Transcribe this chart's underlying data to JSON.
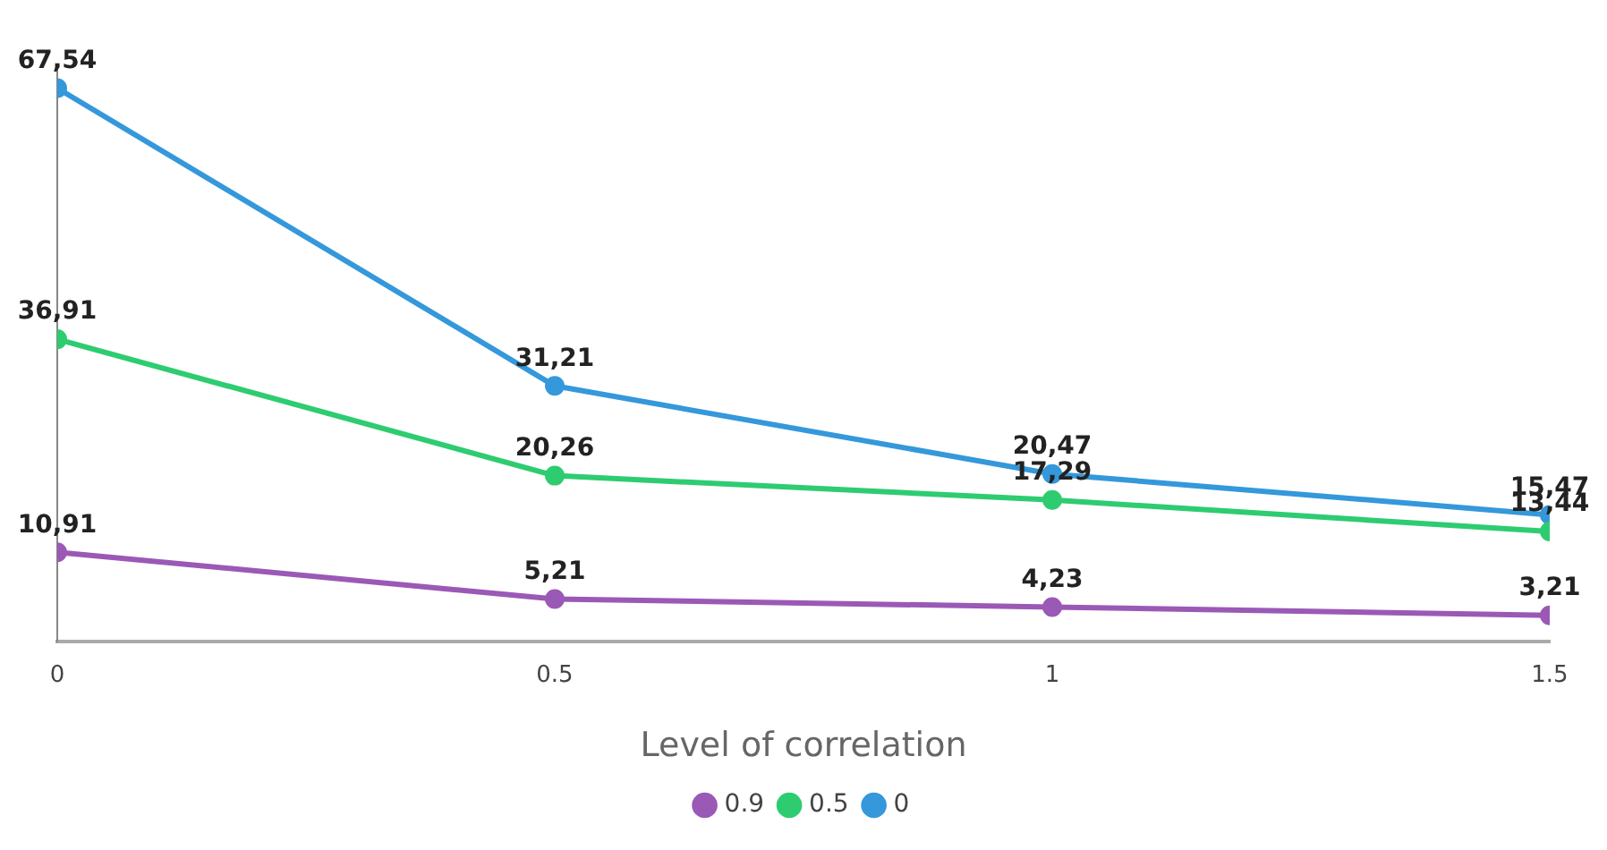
{
  "chart_data": {
    "type": "line",
    "xlabel": "Level of correlation",
    "x": [
      0,
      0.5,
      1,
      1.5
    ],
    "xlim": [
      0,
      1.5
    ],
    "xticks": [
      0,
      0.5,
      1,
      1.5
    ],
    "ylim": [
      0,
      70
    ],
    "tick_labels": "x",
    "grid": false,
    "legend": "bottom",
    "marker": "circle",
    "line_style": "solid",
    "series": [
      {
        "name": "0.9",
        "color": "#9b59b6",
        "values": [
          10.91,
          5.21,
          4.23,
          3.21
        ],
        "value_labels": [
          "10,91",
          "5,21",
          "4,23",
          "3,21"
        ]
      },
      {
        "name": "0.5",
        "color": "#2ecc71",
        "values": [
          36.91,
          20.26,
          17.29,
          13.44
        ],
        "value_labels": [
          "36,91",
          "20,26",
          "17,29",
          "13,44"
        ]
      },
      {
        "name": "0",
        "color": "#3498db",
        "values": [
          67.54,
          31.21,
          20.47,
          15.47
        ],
        "value_labels": [
          "67,54",
          "31,21",
          "20,47",
          "15,47"
        ]
      }
    ]
  }
}
